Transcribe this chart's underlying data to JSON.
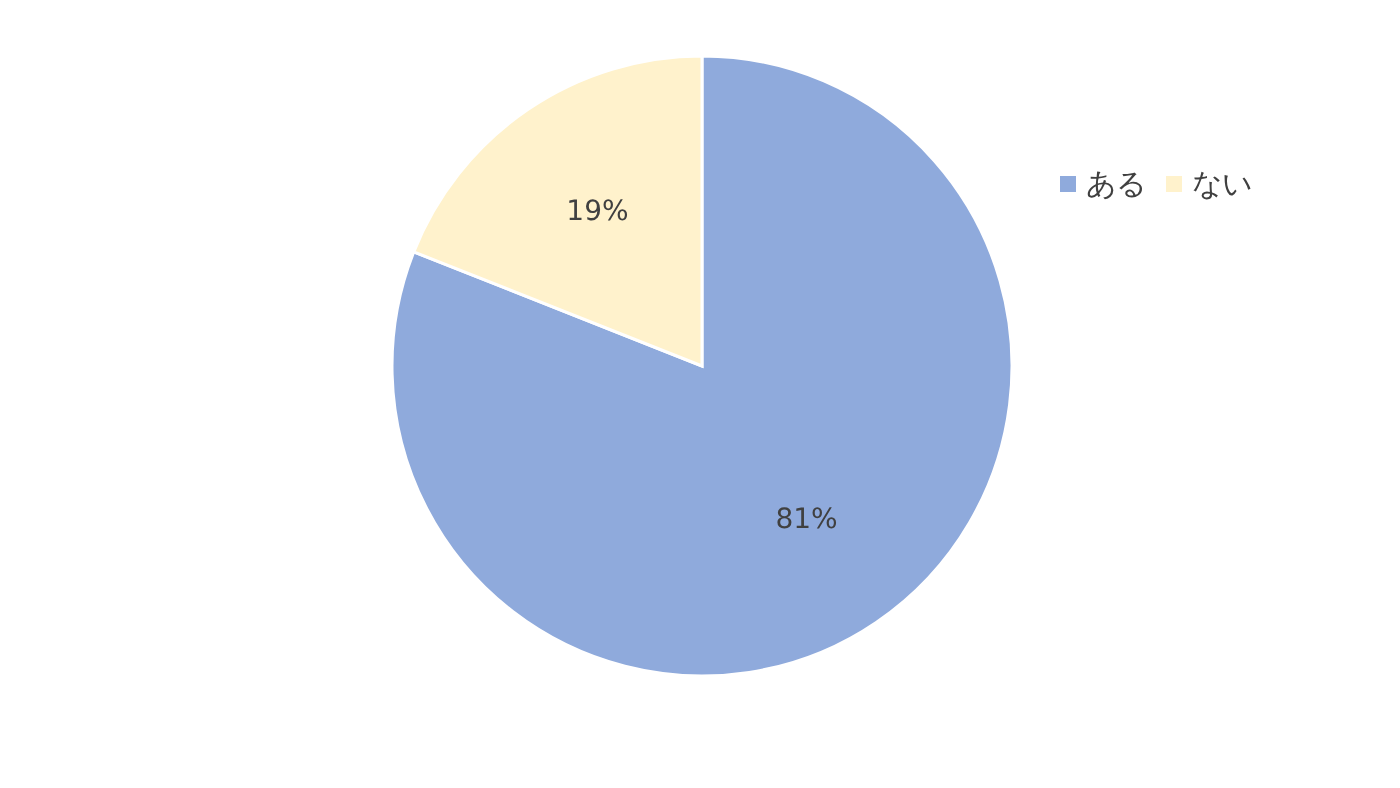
{
  "chart_data": {
    "type": "pie",
    "categories": [
      "ある",
      "ない"
    ],
    "values": [
      81,
      19
    ],
    "colors": [
      "#8faadc",
      "#fff2cc"
    ],
    "value_labels": [
      "81%",
      "19%"
    ],
    "legend": "top right"
  }
}
